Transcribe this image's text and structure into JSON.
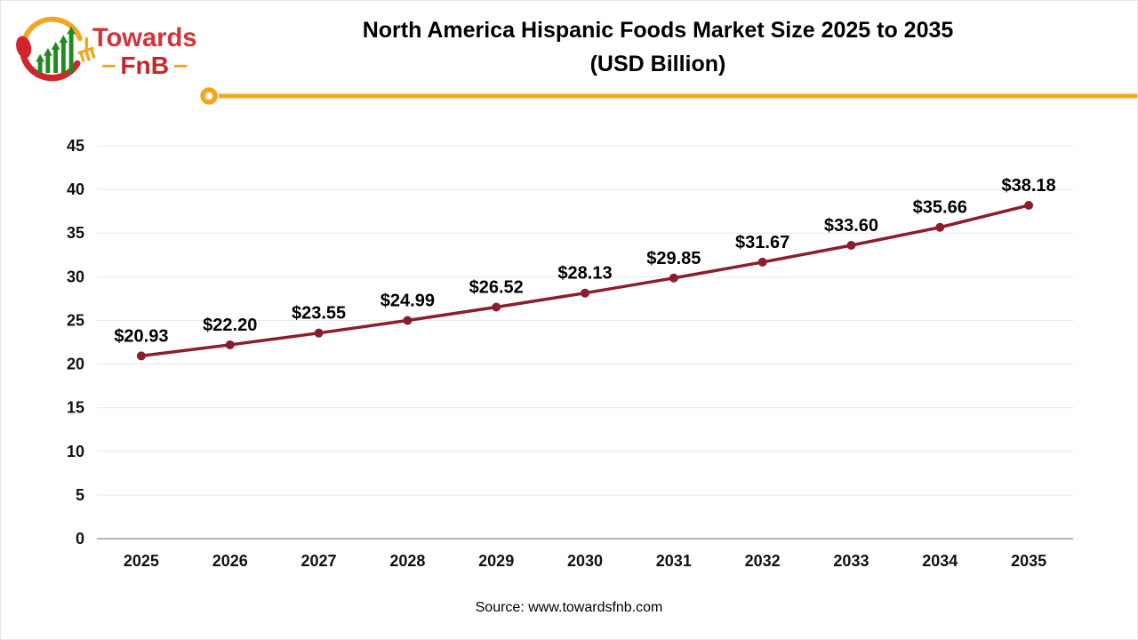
{
  "logo": {
    "towards": "Towards",
    "fnb": "FnB"
  },
  "header": {
    "title_line1": "North America Hispanic Foods Market Size 2025 to 2035",
    "title_line2": "(USD Billion)"
  },
  "footer": {
    "source": "Source: www.towardsfnb.com"
  },
  "colors": {
    "series": "#8B1E2D",
    "accent_gold": "#F3A61B",
    "grid": "#E8E8E8",
    "axis_zero": "#ABABAB",
    "text": "#111111",
    "logo_red": "#D2343A",
    "logo_dark_red": "#C8242C",
    "logo_green": "#1F8B1F"
  },
  "chart_data": {
    "type": "line",
    "title": "North America Hispanic Foods Market Size 2025 to 2035 (USD Billion)",
    "categories": [
      "2025",
      "2026",
      "2027",
      "2028",
      "2029",
      "2030",
      "2031",
      "2032",
      "2033",
      "2034",
      "2035"
    ],
    "series": [
      {
        "name": "Market Size (USD Billion)",
        "values": [
          20.93,
          22.2,
          23.55,
          24.99,
          26.52,
          28.13,
          29.85,
          31.67,
          33.6,
          35.66,
          38.18
        ]
      }
    ],
    "point_labels": [
      "$20.93",
      "$22.20",
      "$23.55",
      "$24.99",
      "$26.52",
      "$28.13",
      "$29.85",
      "$31.67",
      "$33.60",
      "$35.66",
      "$38.18"
    ],
    "xlabel": "",
    "ylabel": "",
    "ylim": [
      0,
      45
    ],
    "yticks": [
      0,
      5,
      10,
      15,
      20,
      25,
      30,
      35,
      40,
      45
    ],
    "grid": true,
    "legend": "none",
    "marker": "circle"
  }
}
